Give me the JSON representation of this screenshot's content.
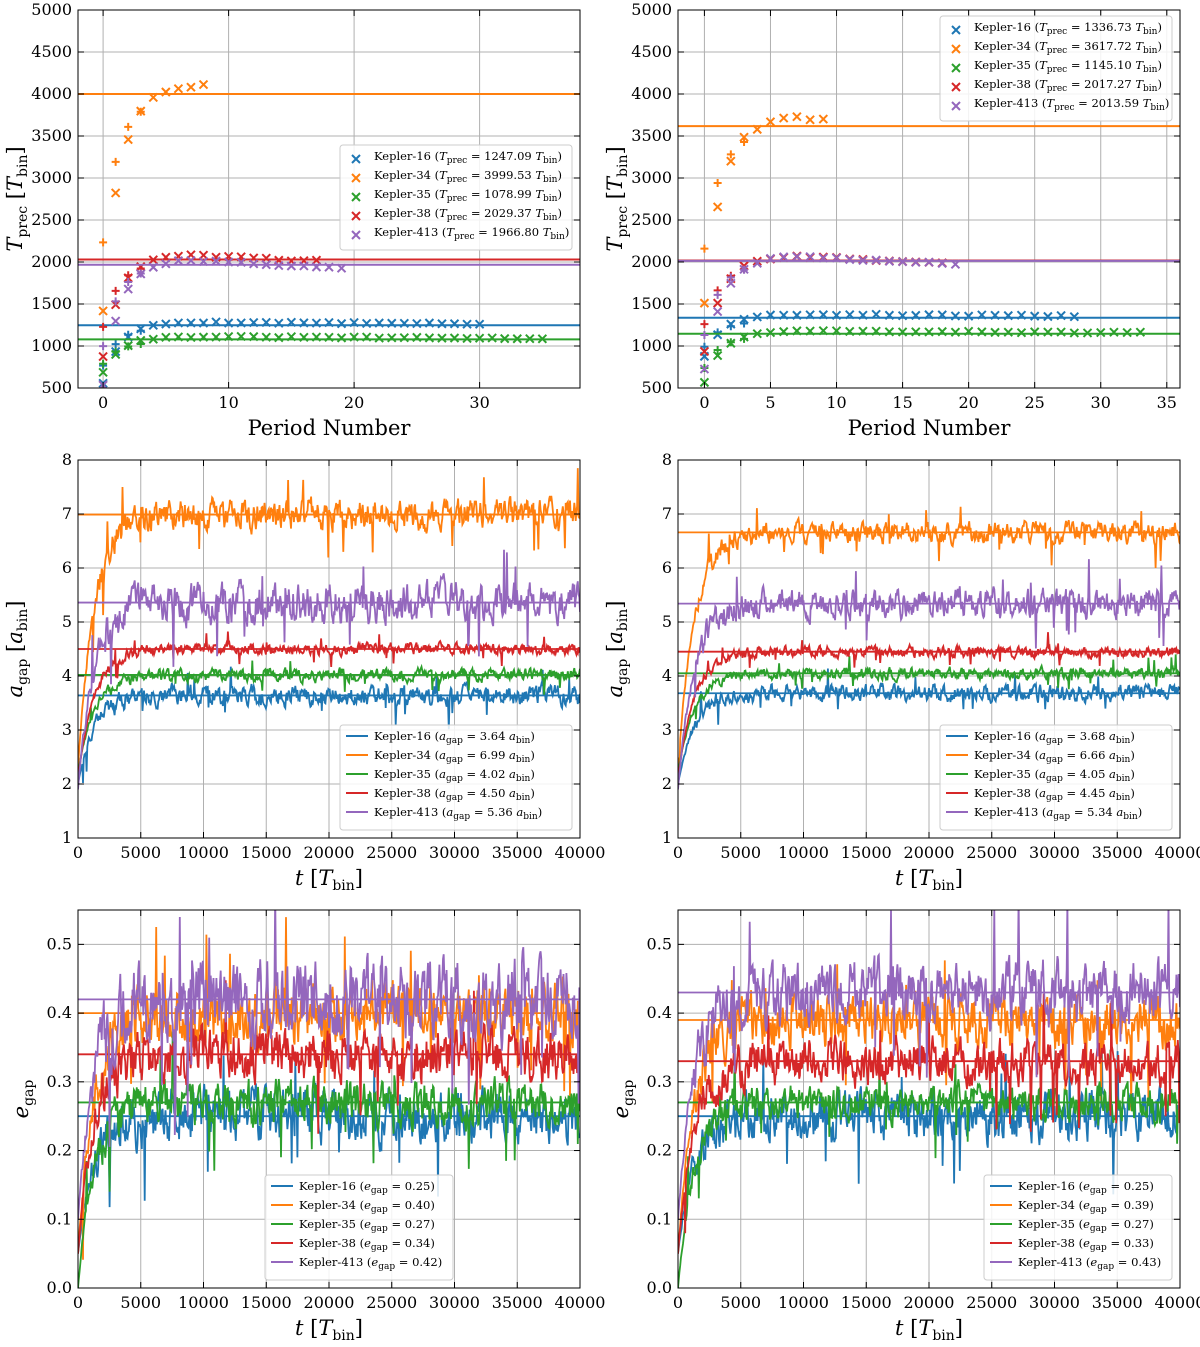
{
  "colors": {
    "Kepler-16": "#1f77b4",
    "Kepler-34": "#ff7f0e",
    "Kepler-35": "#2ca02c",
    "Kepler-38": "#d62728",
    "Kepler-413": "#9467bd"
  },
  "chart_data": [
    {
      "id": "prec-left",
      "type": "scatter",
      "xlabel": "Period Number",
      "ylabel": "T_prec [T_bin]",
      "xlim": [
        -2,
        38
      ],
      "ylim": [
        500,
        5000
      ],
      "xticks": [
        0,
        10,
        20,
        30
      ],
      "yticks": [
        500,
        1000,
        1500,
        2000,
        2500,
        3000,
        3500,
        4000,
        4500,
        5000
      ],
      "legend_position": "center-right",
      "series": [
        {
          "name": "Kepler-16",
          "legend": "Kepler-16 (Tprec = 1247.09 Tbin)",
          "n_periods": 31,
          "start": 560,
          "mean": 1247.09
        },
        {
          "name": "Kepler-34",
          "legend": "Kepler-34 (Tprec = 3999.53 Tbin)",
          "n_periods": 9,
          "start": 1430,
          "mean": 3999.53
        },
        {
          "name": "Kepler-35",
          "legend": "Kepler-35 (Tprec = 1078.99 Tbin)",
          "n_periods": 36,
          "start": 690,
          "mean": 1078.99
        },
        {
          "name": "Kepler-38",
          "legend": "Kepler-38 (Tprec = 2029.37 Tbin)",
          "n_periods": 18,
          "start": 880,
          "mean": 2029.37
        },
        {
          "name": "Kepler-413",
          "legend": "Kepler-413 (Tprec = 1966.80 Tbin)",
          "n_periods": 20,
          "start": 540,
          "mean": 1966.8
        }
      ]
    },
    {
      "id": "prec-right",
      "type": "scatter",
      "xlabel": "Period Number",
      "ylabel": "T_prec [T_bin]",
      "xlim": [
        -2,
        36
      ],
      "ylim": [
        500,
        5000
      ],
      "xticks": [
        0,
        5,
        10,
        15,
        20,
        25,
        30,
        35
      ],
      "yticks": [
        500,
        1000,
        1500,
        2000,
        2500,
        3000,
        3500,
        4000,
        4500,
        5000
      ],
      "legend_position": "upper-right",
      "series": [
        {
          "name": "Kepler-16",
          "legend": "Kepler-16 (Tprec = 1336.73 Tbin)",
          "n_periods": 29,
          "start": 880,
          "mean": 1336.73
        },
        {
          "name": "Kepler-34",
          "legend": "Kepler-34 (Tprec = 3617.72 Tbin)",
          "n_periods": 10,
          "start": 1520,
          "mean": 3617.72
        },
        {
          "name": "Kepler-35",
          "legend": "Kepler-35 (Tprec = 1145.10 Tbin)",
          "n_periods": 34,
          "start": 570,
          "mean": 1145.1
        },
        {
          "name": "Kepler-38",
          "legend": "Kepler-38 (Tprec = 2017.27 Tbin)",
          "n_periods": 19,
          "start": 940,
          "mean": 2017.27
        },
        {
          "name": "Kepler-413",
          "legend": "Kepler-413 (Tprec = 2013.59 Tbin)",
          "n_periods": 20,
          "start": 730,
          "mean": 2013.59
        }
      ]
    },
    {
      "id": "agap-left",
      "type": "line",
      "xlabel": "t [T_bin]",
      "ylabel": "a_gap [a_bin]",
      "xlim": [
        0,
        40000
      ],
      "ylim": [
        1,
        8
      ],
      "xticks": [
        0,
        5000,
        10000,
        15000,
        20000,
        25000,
        30000,
        35000,
        40000
      ],
      "yticks": [
        1,
        2,
        3,
        4,
        5,
        6,
        7,
        8
      ],
      "legend_position": "lower-right",
      "series": [
        {
          "name": "Kepler-16",
          "legend": "Kepler-16 (agap = 3.64 abin)",
          "mean": 3.64,
          "amp": 0.14,
          "start": 2.0
        },
        {
          "name": "Kepler-34",
          "legend": "Kepler-34 (agap = 6.99 abin)",
          "mean": 6.99,
          "amp": 0.22,
          "start": 2.3
        },
        {
          "name": "Kepler-35",
          "legend": "Kepler-35 (agap = 4.02 abin)",
          "mean": 4.02,
          "amp": 0.09,
          "start": 2.2
        },
        {
          "name": "Kepler-38",
          "legend": "Kepler-38 (agap = 4.50 abin)",
          "mean": 4.5,
          "amp": 0.08,
          "start": 2.1
        },
        {
          "name": "Kepler-413",
          "legend": "Kepler-413 (agap = 5.36 abin)",
          "mean": 5.36,
          "amp": 0.28,
          "start": 1.9
        }
      ]
    },
    {
      "id": "agap-right",
      "type": "line",
      "xlabel": "t [T_bin]",
      "ylabel": "a_gap [a_bin]",
      "xlim": [
        0,
        40000
      ],
      "ylim": [
        1,
        8
      ],
      "xticks": [
        0,
        5000,
        10000,
        15000,
        20000,
        25000,
        30000,
        35000,
        40000
      ],
      "yticks": [
        1,
        2,
        3,
        4,
        5,
        6,
        7,
        8
      ],
      "legend_position": "lower-right",
      "series": [
        {
          "name": "Kepler-16",
          "legend": "Kepler-16 (agap = 3.68 abin)",
          "mean": 3.68,
          "amp": 0.12,
          "start": 2.0
        },
        {
          "name": "Kepler-34",
          "legend": "Kepler-34 (agap = 6.66 abin)",
          "mean": 6.66,
          "amp": 0.15,
          "start": 2.3
        },
        {
          "name": "Kepler-35",
          "legend": "Kepler-35 (agap = 4.05 abin)",
          "mean": 4.05,
          "amp": 0.08,
          "start": 2.2
        },
        {
          "name": "Kepler-38",
          "legend": "Kepler-38 (agap = 4.45 abin)",
          "mean": 4.45,
          "amp": 0.08,
          "start": 2.1
        },
        {
          "name": "Kepler-413",
          "legend": "Kepler-413 (agap = 5.34 abin)",
          "mean": 5.34,
          "amp": 0.2,
          "start": 1.9
        }
      ]
    },
    {
      "id": "egap-left",
      "type": "line",
      "xlabel": "t [T_bin]",
      "ylabel": "e_gap",
      "xlim": [
        0,
        40000
      ],
      "ylim": [
        0,
        0.55
      ],
      "xticks": [
        0,
        5000,
        10000,
        15000,
        20000,
        25000,
        30000,
        35000,
        40000
      ],
      "yticks": [
        0.0,
        0.1,
        0.2,
        0.3,
        0.4,
        0.5
      ],
      "legend_position": "lower-center",
      "series": [
        {
          "name": "Kepler-16",
          "legend": "Kepler-16 (egap = 0.25)",
          "mean": 0.25,
          "amp": 0.03,
          "start": 0.05
        },
        {
          "name": "Kepler-34",
          "legend": "Kepler-34 (egap = 0.40)",
          "mean": 0.4,
          "amp": 0.035,
          "start": 0.05
        },
        {
          "name": "Kepler-35",
          "legend": "Kepler-35 (egap = 0.27)",
          "mean": 0.27,
          "amp": 0.025,
          "start": 0.0
        },
        {
          "name": "Kepler-38",
          "legend": "Kepler-38 (egap = 0.34)",
          "mean": 0.34,
          "amp": 0.03,
          "start": 0.05
        },
        {
          "name": "Kepler-413",
          "legend": "Kepler-413 (egap = 0.42)",
          "mean": 0.42,
          "amp": 0.045,
          "start": 0.1
        }
      ]
    },
    {
      "id": "egap-right",
      "type": "line",
      "xlabel": "t [T_bin]",
      "ylabel": "e_gap",
      "xlim": [
        0,
        40000
      ],
      "ylim": [
        0,
        0.55
      ],
      "xticks": [
        0,
        5000,
        10000,
        15000,
        20000,
        25000,
        30000,
        35000,
        40000
      ],
      "yticks": [
        0.0,
        0.1,
        0.2,
        0.3,
        0.4,
        0.5
      ],
      "legend_position": "lower-right",
      "series": [
        {
          "name": "Kepler-16",
          "legend": "Kepler-16 (egap = 0.25)",
          "mean": 0.25,
          "amp": 0.028,
          "start": 0.05
        },
        {
          "name": "Kepler-34",
          "legend": "Kepler-34 (egap = 0.39)",
          "mean": 0.39,
          "amp": 0.03,
          "start": 0.05
        },
        {
          "name": "Kepler-35",
          "legend": "Kepler-35 (egap = 0.27)",
          "mean": 0.27,
          "amp": 0.02,
          "start": 0.0
        },
        {
          "name": "Kepler-38",
          "legend": "Kepler-38 (egap = 0.33)",
          "mean": 0.33,
          "amp": 0.025,
          "start": 0.05
        },
        {
          "name": "Kepler-413",
          "legend": "Kepler-413 (egap = 0.43)",
          "mean": 0.43,
          "amp": 0.035,
          "start": 0.1
        }
      ]
    }
  ]
}
